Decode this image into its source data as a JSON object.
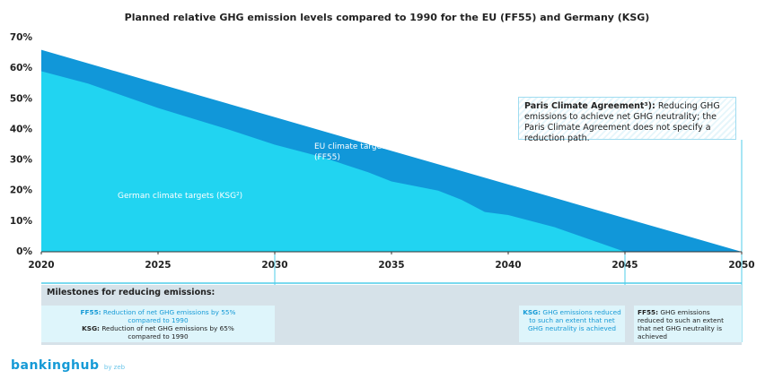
{
  "chart_data": {
    "type": "area",
    "title": "Planned relative GHG emission levels compared to 1990 for the EU (FF55) and Germany (KSG)",
    "xlim": [
      2020,
      2050
    ],
    "xticks": [
      2020,
      2025,
      2030,
      2035,
      2040,
      2045,
      2050
    ],
    "ylim": [
      0,
      70
    ],
    "yticks": [
      {
        "value": 0,
        "label": "0%"
      },
      {
        "value": 10,
        "label": "10%"
      },
      {
        "value": 20,
        "label": "20%"
      },
      {
        "value": 30,
        "label": "30%"
      },
      {
        "value": 40,
        "label": "40%"
      },
      {
        "value": 50,
        "label": "50%"
      },
      {
        "value": 60,
        "label": "60%"
      },
      {
        "value": 70,
        "label": "70%"
      }
    ],
    "grid": false,
    "series": [
      {
        "name": "EU climate targets (FF55)",
        "color": "#1197d9",
        "x": [
          2020,
          2025,
          2030,
          2035,
          2040,
          2045,
          2050
        ],
        "values": [
          66,
          55,
          44,
          33,
          22,
          11,
          0
        ]
      },
      {
        "name": "German climate targets (KSG²)",
        "color": "#21d4f1",
        "x": [
          2020,
          2022,
          2025,
          2028,
          2030,
          2032,
          2034,
          2035,
          2037,
          2038,
          2039,
          2040,
          2042,
          2045
        ],
        "values": [
          59,
          55,
          47,
          40,
          35,
          31,
          26,
          23,
          20,
          17,
          13,
          12,
          8,
          0
        ]
      }
    ],
    "annotations": [
      {
        "title": "Paris Climate Agreement³):",
        "text": "Reducing GHG emissions to achieve net GHG neutrality; the Paris Climate Agreement does not specify a reduction path."
      }
    ]
  },
  "milestones": {
    "title": "Milestones for reducing emissions:",
    "items": [
      {
        "lines": [
          {
            "label": "FF55:",
            "text": "Reduction of net GHG emissions by 55% compared to 1990"
          },
          {
            "label": "KSG:",
            "text": "Reduction of net GHG emissions by 65% compared to 1990"
          }
        ]
      },
      {
        "lines": [
          {
            "label": "KSG:",
            "text": "GHG emissions reduced to such an extent that net GHG neutrality is achieved"
          }
        ]
      },
      {
        "lines": [
          {
            "label": "FF55:",
            "text": "GHG emissions reduced to such an extent that net GHG neutrality is achieved"
          }
        ]
      }
    ]
  },
  "branding": {
    "name": "bankinghub",
    "suffix": "by zeb"
  }
}
